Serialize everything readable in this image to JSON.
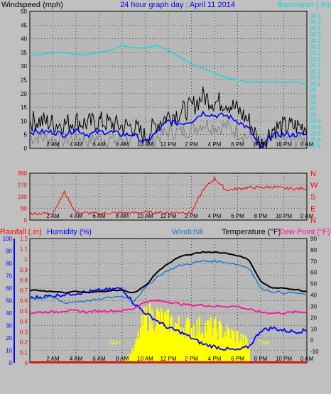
{
  "header": {
    "left_label": "Windspeed (mph)",
    "title": "24 hour graph day : April 11 2014",
    "right_label": "Barometer (.in)"
  },
  "mid": {
    "dir_labels": [
      "N",
      "W",
      "S",
      "E",
      "N"
    ]
  },
  "bottom": {
    "rain_label": "Rainfall (.in)",
    "hum_label": "Humidity (%)",
    "windchill_label": "Windchill",
    "temp_label": "Temperature (°F)",
    "dew_label": "Dew Point (°F)",
    "sun_label": "Sun"
  },
  "colors": {
    "wind_gust": "#000000",
    "wind_avg": "#0000ff",
    "wind_gray": "#808080",
    "barometer": "#00dddd",
    "direction": "#ff0000",
    "temperature": "#000000",
    "windchill": "#1e78c8",
    "dewpoint": "#ff1493",
    "humidity": "#0000ff",
    "solar": "#ffff00",
    "rain_axis": "#ff0000",
    "hum_axis": "#0000ff",
    "temp_axis": "#000000",
    "title": "#0000ff",
    "baro_axis": "#00dddd"
  },
  "chart_data": [
    {
      "type": "line",
      "title": "24 hour graph day : April 11 2014",
      "ylabel": "Windspeed (mph)",
      "ylabel_right": "Barometer (.in)",
      "ylim": [
        0,
        50
      ],
      "ylim_right": [
        29.8,
        30.4
      ],
      "yticks": [
        0,
        5,
        10,
        15,
        20,
        25,
        30,
        35,
        40,
        45,
        50
      ],
      "yticks_right": [
        "29.8",
        "29.9",
        "29.9",
        "29.9",
        "29.9",
        "30",
        "30",
        "30",
        "30",
        "30",
        "30.1",
        "30.1",
        "30.1",
        "30.1",
        "30.2",
        "30.2",
        "30.2",
        "30.2",
        "30.3",
        "30.3",
        "30.3",
        "30.3"
      ],
      "x_ticks": [
        "2 AM",
        "4 AM",
        "6 AM",
        "8 AM",
        "10 AM",
        "12 PM",
        "2 PM",
        "4 PM",
        "6 PM",
        "8 PM",
        "10 PM",
        "0 AM"
      ],
      "x_hours": [
        0,
        1,
        2,
        3,
        4,
        5,
        6,
        7,
        8,
        9,
        10,
        11,
        12,
        13,
        14,
        15,
        16,
        17,
        18,
        19,
        20,
        21,
        22,
        23,
        24
      ],
      "series": [
        {
          "name": "gust",
          "values": [
            10,
            10,
            9,
            9,
            10,
            9,
            10,
            9,
            8,
            8,
            4,
            9,
            12,
            13,
            15,
            19,
            17,
            17,
            14,
            10,
            1,
            7,
            8,
            8,
            8
          ]
        },
        {
          "name": "average",
          "values": [
            6,
            6,
            6,
            5,
            7,
            5,
            6,
            6,
            5,
            5,
            2,
            6,
            10,
            9,
            10,
            13,
            12,
            12,
            10,
            7,
            0,
            5,
            5,
            5,
            5
          ]
        },
        {
          "name": "low",
          "values": [
            4,
            4,
            3,
            3,
            4,
            3,
            4,
            3,
            3,
            3,
            1,
            4,
            6,
            6,
            7,
            9,
            8,
            8,
            6,
            4,
            0,
            3,
            3,
            3,
            3
          ]
        },
        {
          "name": "barometer",
          "values": [
            30.21,
            30.21,
            30.22,
            30.22,
            30.21,
            30.21,
            30.22,
            30.23,
            30.25,
            30.24,
            30.24,
            30.25,
            30.23,
            30.2,
            30.17,
            30.15,
            30.13,
            30.11,
            30.1,
            30.09,
            30.09,
            30.09,
            30.09,
            30.09,
            30.08
          ]
        }
      ]
    },
    {
      "type": "line",
      "ylim": [
        0,
        360
      ],
      "yticks": [
        0,
        90,
        180,
        270,
        360
      ],
      "x_ticks": [
        "2 AM",
        "4 AM",
        "6 AM",
        "8 AM",
        "10 AM",
        "12 PM",
        "2 PM",
        "4 PM",
        "6 PM",
        "8 PM",
        "10 PM",
        "0 AM"
      ],
      "x_hours": [
        0,
        1,
        2,
        3,
        4,
        5,
        6,
        7,
        8,
        9,
        10,
        11,
        12,
        13,
        14,
        15,
        16,
        17,
        18,
        19,
        20,
        21,
        22,
        23,
        24
      ],
      "series": [
        {
          "name": "direction",
          "values": [
            50,
            50,
            55,
            215,
            55,
            55,
            50,
            55,
            55,
            55,
            60,
            60,
            55,
            60,
            55,
            230,
            320,
            230,
            240,
            250,
            250,
            255,
            245,
            240,
            245
          ]
        }
      ]
    },
    {
      "type": "line",
      "ylim": [
        0,
        100
      ],
      "yticks": [
        0,
        10,
        20,
        30,
        40,
        50,
        60,
        70,
        80,
        90,
        100
      ],
      "ylim_rain": [
        0,
        1.2
      ],
      "yticks_rain": [
        0,
        0.1,
        0.2,
        0.3,
        0.4,
        0.5,
        0.6,
        0.7,
        0.8,
        0.9,
        1,
        1.1,
        1.2
      ],
      "ylim_right": [
        -20,
        90
      ],
      "yticks_right": [
        -10,
        0,
        10,
        20,
        30,
        40,
        50,
        60,
        70,
        80,
        90
      ],
      "x_ticks": [
        "2 AM",
        "4 AM",
        "6 AM",
        "8 AM",
        "10 AM",
        "12 PM",
        "2 PM",
        "4 PM",
        "6 PM",
        "8 PM",
        "10 PM",
        "0 AM"
      ],
      "x_hours": [
        0,
        1,
        2,
        3,
        4,
        5,
        6,
        7,
        8,
        9,
        10,
        11,
        12,
        13,
        14,
        15,
        16,
        17,
        18,
        19,
        20,
        21,
        22,
        23,
        24
      ],
      "series": [
        {
          "name": "temperature",
          "values": [
            44,
            44,
            43,
            42,
            43,
            42,
            43,
            44,
            44,
            42,
            48,
            60,
            68,
            74,
            76,
            78,
            78,
            77,
            75,
            71,
            52,
            46,
            46,
            45,
            43
          ]
        },
        {
          "name": "windchill",
          "values": [
            38,
            37,
            38,
            33,
            34,
            35,
            36,
            38,
            39,
            35,
            46,
            56,
            62,
            66,
            68,
            70,
            70,
            69,
            67,
            64,
            46,
            43,
            42,
            42,
            40
          ]
        },
        {
          "name": "dewpoint",
          "values": [
            24,
            25,
            25,
            26,
            26,
            25,
            26,
            26,
            26,
            28,
            34,
            35,
            34,
            32,
            31,
            31,
            30,
            30,
            30,
            27,
            25,
            24,
            24,
            25,
            25
          ]
        },
        {
          "name": "humidity",
          "values": [
            52,
            53,
            54,
            55,
            56,
            57,
            58,
            59,
            60,
            48,
            40,
            34,
            28,
            25,
            20,
            15,
            13,
            11,
            10,
            13,
            26,
            28,
            26,
            25,
            26
          ]
        },
        {
          "name": "solar",
          "values": [
            0,
            0,
            0,
            0,
            0,
            0,
            0,
            0,
            0,
            12,
            45,
            45,
            40,
            36,
            35,
            35,
            34,
            30,
            26,
            18,
            0,
            0,
            0,
            0,
            0
          ]
        },
        {
          "name": "rainfall",
          "values": [
            0,
            0,
            0,
            0,
            0,
            0,
            0,
            0,
            0,
            0,
            0,
            0,
            0,
            0,
            0,
            0,
            0,
            0,
            0,
            0,
            0,
            0,
            0,
            0,
            0
          ]
        }
      ]
    }
  ]
}
